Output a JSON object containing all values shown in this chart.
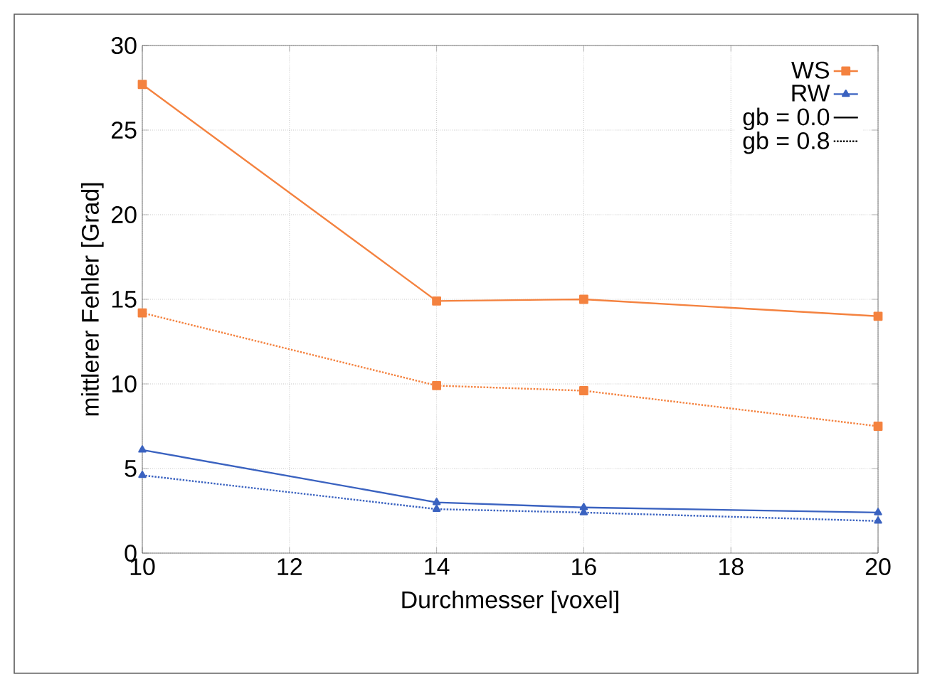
{
  "chart_data": {
    "type": "line",
    "xlabel": "Durchmesser [voxel]",
    "ylabel": "mittlerer Fehler [Grad]",
    "x": [
      10,
      14,
      16,
      20
    ],
    "series": [
      {
        "name": "WS",
        "color": "#f4823f",
        "marker": "square",
        "line_style": "solid",
        "values": [
          27.7,
          14.9,
          15.0,
          14.0
        ]
      },
      {
        "name": "RW",
        "color": "#3a62c0",
        "marker": "triangle",
        "line_style": "solid",
        "values": [
          6.1,
          3.0,
          2.7,
          2.4
        ]
      },
      {
        "name": "gb = 0.0",
        "color": "#000000",
        "marker": "none",
        "line_style": "solid",
        "values": [
          null,
          null,
          null,
          null
        ]
      },
      {
        "name": "gb = 0.8",
        "color": "#000000",
        "marker": "none",
        "line_style": "dotted",
        "values": [
          null,
          null,
          null,
          null
        ]
      },
      {
        "color": "#f4823f",
        "marker": "square",
        "line_style": "dotted",
        "values": [
          14.2,
          9.9,
          9.6,
          7.5
        ]
      },
      {
        "color": "#3a62c0",
        "marker": "triangle",
        "line_style": "dotted",
        "values": [
          4.6,
          2.6,
          2.4,
          1.9
        ]
      }
    ],
    "xlim": [
      10,
      20
    ],
    "xticks": [
      10,
      12,
      14,
      16,
      18,
      20
    ],
    "ylim": [
      0,
      30
    ],
    "yticks": [
      0,
      5,
      10,
      15,
      20,
      25,
      30
    ],
    "grid": true,
    "legend": "top right"
  }
}
